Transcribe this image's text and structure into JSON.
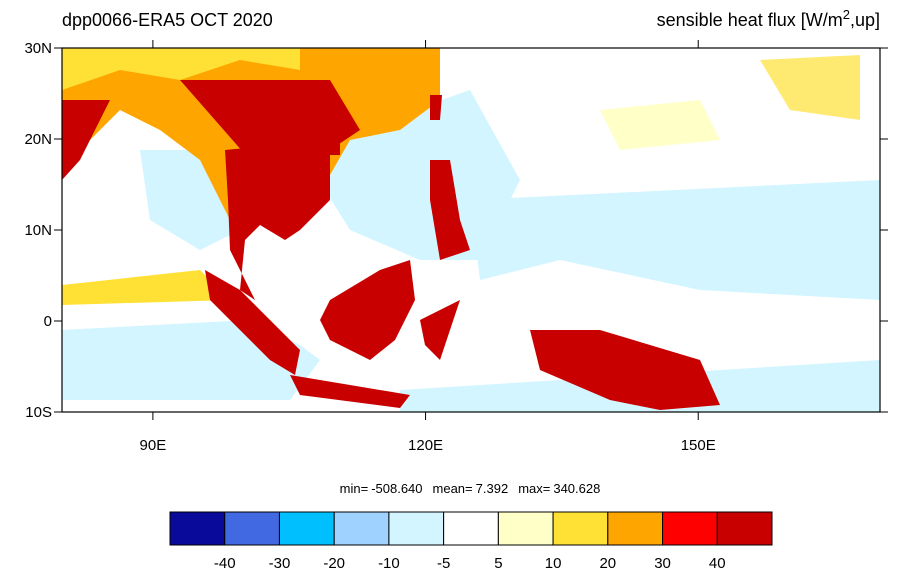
{
  "chart_data": {
    "type": "map",
    "title_left": "dpp0066-ERA5  OCT 2020",
    "title_right": {
      "prefix": "sensible heat flux [W/m",
      "superscript": "2",
      "suffix": ",up]"
    },
    "xlim": [
      80,
      170
    ],
    "ylim": [
      -10,
      30
    ],
    "xticks": [
      {
        "value": 90,
        "label": "90E"
      },
      {
        "value": 120,
        "label": "120E"
      },
      {
        "value": 150,
        "label": "150E"
      }
    ],
    "yticks": [
      {
        "value": -10,
        "label": "10S"
      },
      0,
      {
        "value": 10,
        "label": "10N"
      },
      {
        "value": 20,
        "label": "20N"
      },
      {
        "value": 30,
        "label": "30N"
      }
    ],
    "stats": [
      {
        "name": "min=",
        "value": {
          "value": -508.64,
          "label": "-508.640"
        }
      },
      {
        "name": "mean=",
        "value": {
          "value": 7.392,
          "label": "7.392"
        }
      },
      {
        "name": "max=",
        "value": {
          "value": 340.628,
          "label": "340.628"
        }
      }
    ],
    "colorbar": {
      "levels": [
        -40,
        -30,
        -20,
        -10,
        -5,
        5,
        10,
        20,
        30,
        40
      ],
      "colors": [
        "#0a0a9a",
        "#4169e1",
        "#00bfff",
        "#a0d2ff",
        "#d2f5ff",
        "#ffffff",
        "#ffffc8",
        "#ffe135",
        "#ffa500",
        "#ff0000",
        "#c80000"
      ]
    }
  }
}
